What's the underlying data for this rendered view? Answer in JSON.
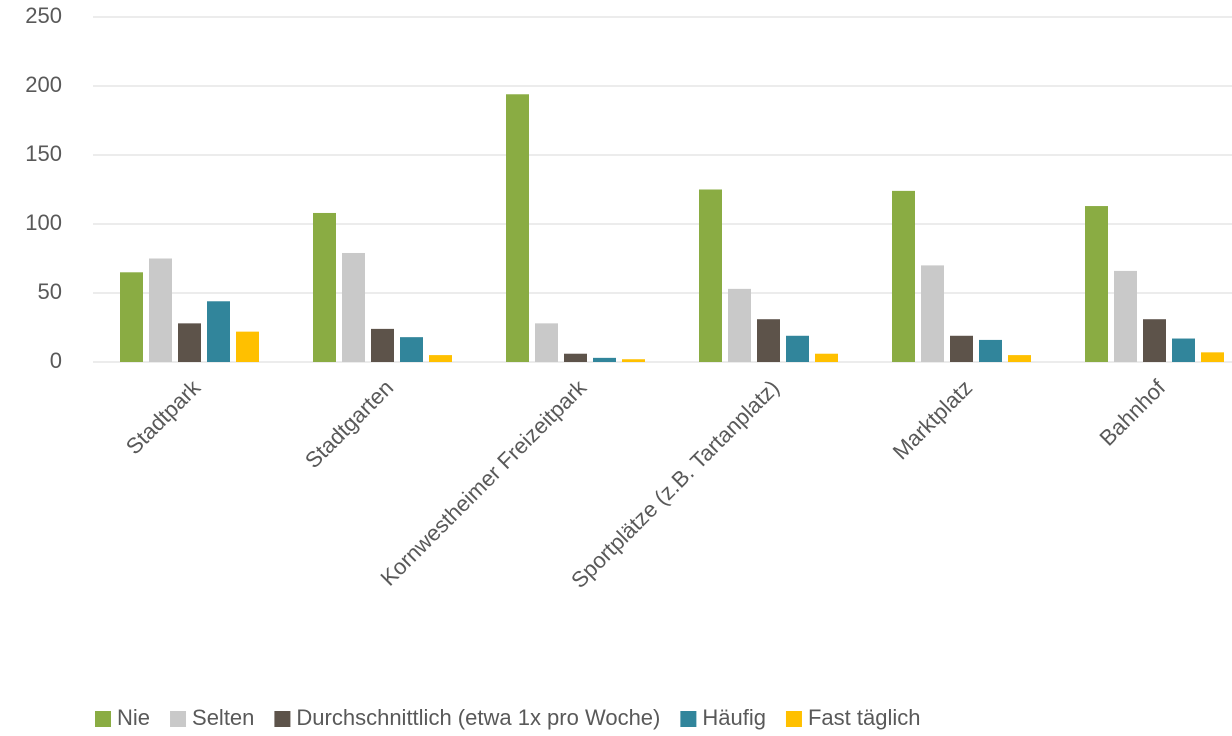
{
  "chart_data": {
    "type": "bar",
    "categories": [
      "Stadtpark",
      "Stadtgarten",
      "Kornwestheimer Freizeitpark",
      "Sportplätze (z.B. Tartanplatz)",
      "Marktplatz",
      "Bahnhof"
    ],
    "series": [
      {
        "name": "Nie",
        "color": "#8aac43",
        "values": [
          65,
          108,
          194,
          125,
          124,
          113
        ]
      },
      {
        "name": "Selten",
        "color": "#c9c9c9",
        "values": [
          75,
          79,
          28,
          53,
          70,
          66
        ]
      },
      {
        "name": "Durchschnittlich (etwa 1x pro Woche)",
        "color": "#5d534a",
        "values": [
          28,
          24,
          6,
          31,
          19,
          31
        ]
      },
      {
        "name": "Häufig",
        "color": "#31859b",
        "values": [
          44,
          18,
          3,
          19,
          16,
          17
        ]
      },
      {
        "name": "Fast täglich",
        "color": "#ffc000",
        "values": [
          22,
          5,
          2,
          6,
          5,
          7
        ]
      }
    ],
    "ylim": [
      0,
      250
    ],
    "yticks": [
      0,
      50,
      100,
      150,
      200,
      250
    ],
    "grid": true,
    "legend": "bottom"
  }
}
